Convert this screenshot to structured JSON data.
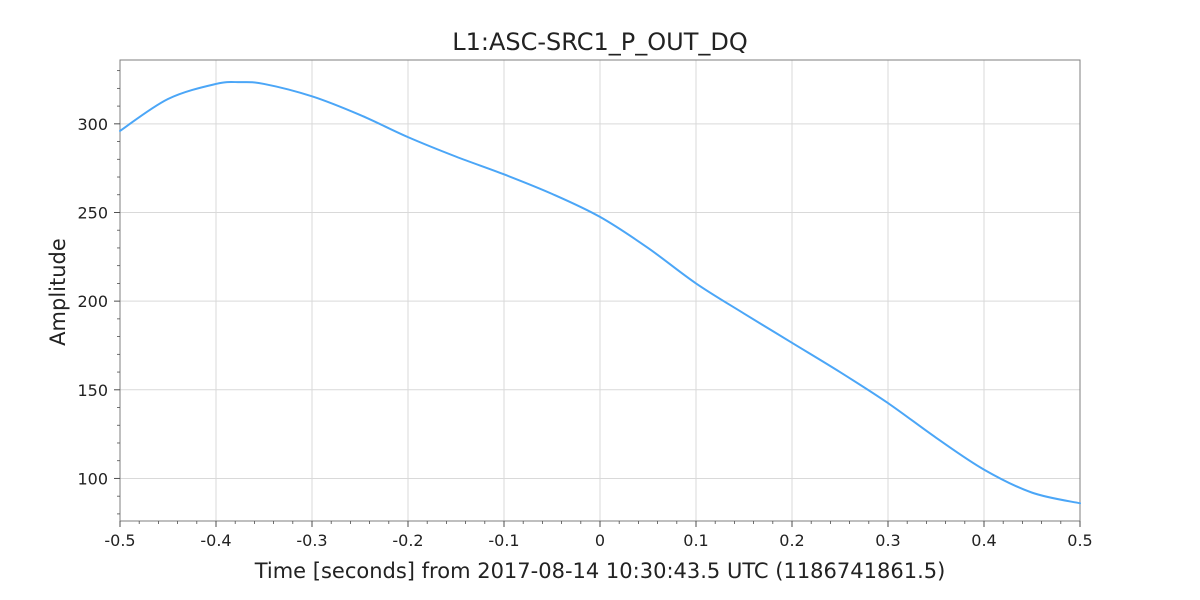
{
  "chart_data": {
    "type": "line",
    "title": "L1:ASC-SRC1_P_OUT_DQ",
    "xlabel": "Time [seconds] from 2017-08-14 10:30:43.5 UTC (1186741861.5)",
    "ylabel": "Amplitude",
    "xlim": [
      -0.5,
      0.5
    ],
    "ylim": [
      76,
      336
    ],
    "x_ticks": [
      -0.5,
      -0.4,
      -0.3,
      -0.2,
      -0.1,
      0,
      0.1,
      0.2,
      0.3,
      0.4,
      0.5
    ],
    "x_tick_labels": [
      "-0.5",
      "-0.4",
      "-0.3",
      "-0.2",
      "-0.1",
      "0",
      "0.1",
      "0.2",
      "0.3",
      "0.4",
      "0.5"
    ],
    "y_ticks": [
      100,
      150,
      200,
      250,
      300
    ],
    "y_tick_labels": [
      "100",
      "150",
      "200",
      "250",
      "300"
    ],
    "grid": true,
    "series": [
      {
        "name": "L1:ASC-SRC1_P_OUT_DQ",
        "color": "#4ba6f7",
        "x": [
          -0.5,
          -0.45,
          -0.4,
          -0.375,
          -0.35,
          -0.3,
          -0.25,
          -0.2,
          -0.15,
          -0.1,
          -0.05,
          0,
          0.05,
          0.1,
          0.15,
          0.2,
          0.25,
          0.3,
          0.35,
          0.4,
          0.45,
          0.5
        ],
        "values": [
          296,
          314,
          322.5,
          323.5,
          322.5,
          315.5,
          305,
          292.5,
          281.5,
          271.5,
          260.5,
          247.5,
          230,
          210,
          193,
          176.5,
          160,
          142.5,
          123,
          105,
          92,
          86
        ]
      }
    ]
  }
}
